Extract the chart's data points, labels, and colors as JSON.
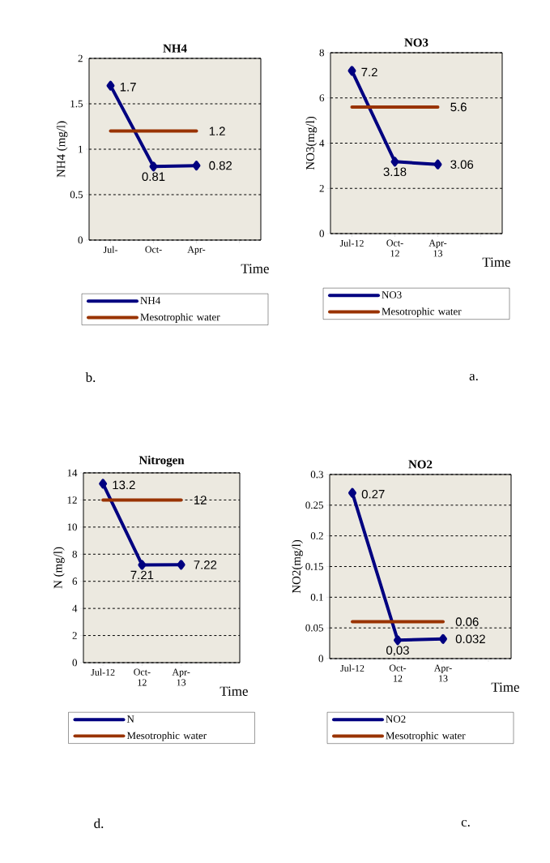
{
  "chart_data": [
    {
      "type": "line",
      "title": "NH4",
      "xlabel": "Time",
      "ylabel": "NH4 (mg/l)",
      "categories": [
        "Jul-",
        "Oct-",
        "Apr-",
        null
      ],
      "ylim": [
        0,
        2
      ],
      "yticks": [
        0,
        0.5,
        1,
        1.5,
        2
      ],
      "grid": "y",
      "legend": "bottom",
      "annotations": [
        "b."
      ],
      "series": [
        {
          "name": "NH4",
          "color": "#000080",
          "marker": "diamond",
          "values": [
            1.7,
            0.81,
            0.82,
            null
          ],
          "value_labels": [
            "1.7",
            "0.81",
            "0.82",
            null
          ]
        },
        {
          "name": "Mesotrophic water",
          "color": "#993300",
          "values": [
            1.2,
            1.2,
            1.2,
            null
          ],
          "value_labels": [
            null,
            null,
            "1.2",
            null
          ]
        }
      ]
    },
    {
      "type": "line",
      "title": "NO3",
      "xlabel": "Time",
      "ylabel": "NO3(mg/l)",
      "categories": [
        "Jul-12",
        "Oct-12",
        "Apr-13",
        null
      ],
      "ylim": [
        0,
        8
      ],
      "yticks": [
        0,
        2,
        4,
        6,
        8
      ],
      "grid": "y",
      "legend": "bottom",
      "annotations": [
        "a."
      ],
      "series": [
        {
          "name": "NO3",
          "color": "#000080",
          "marker": "diamond",
          "values": [
            7.2,
            3.18,
            3.06,
            null
          ],
          "value_labels": [
            "7.2",
            "3.18",
            "3.06",
            null
          ]
        },
        {
          "name": "Mesotrophic water",
          "color": "#993300",
          "values": [
            5.6,
            5.6,
            5.6,
            null
          ],
          "value_labels": [
            null,
            null,
            "5.6",
            null
          ]
        }
      ]
    },
    {
      "type": "line",
      "title": "Nitrogen",
      "xlabel": "Time",
      "ylabel": "N (mg/l)",
      "categories": [
        "Jul-12",
        "Oct-12",
        "Apr-13",
        null
      ],
      "ylim": [
        0,
        14
      ],
      "yticks": [
        0,
        2,
        4,
        6,
        8,
        10,
        12,
        14
      ],
      "grid": "y",
      "legend": "bottom",
      "annotations": [
        "d."
      ],
      "series": [
        {
          "name": "N",
          "color": "#000080",
          "marker": "diamond",
          "values": [
            13.2,
            7.21,
            7.22,
            null
          ],
          "value_labels": [
            "13.2",
            "7.21",
            "7.22",
            null
          ]
        },
        {
          "name": "Mesotrophic water",
          "color": "#993300",
          "values": [
            12,
            12,
            12,
            null
          ],
          "value_labels": [
            null,
            null,
            "12",
            null
          ]
        }
      ]
    },
    {
      "type": "line",
      "title": "NO2",
      "xlabel": "Time",
      "ylabel": "NO2(mg/l)",
      "categories": [
        "Jul-12",
        "Oct-12",
        "Apr-13",
        null
      ],
      "ylim": [
        0,
        0.3
      ],
      "yticks": [
        0,
        0.05,
        0.1,
        0.15,
        0.2,
        0.25,
        0.3
      ],
      "grid": "y",
      "legend": "bottom",
      "annotations": [
        "c."
      ],
      "series": [
        {
          "name": "NO2",
          "color": "#000080",
          "marker": "diamond",
          "values": [
            0.27,
            0.03,
            0.032,
            null
          ],
          "value_labels": [
            "0.27",
            "0,03",
            "0.032",
            null
          ]
        },
        {
          "name": "Mesotrophic water",
          "color": "#993300",
          "values": [
            0.06,
            0.06,
            0.06,
            null
          ],
          "value_labels": [
            null,
            null,
            "0.06",
            null
          ]
        }
      ]
    }
  ]
}
